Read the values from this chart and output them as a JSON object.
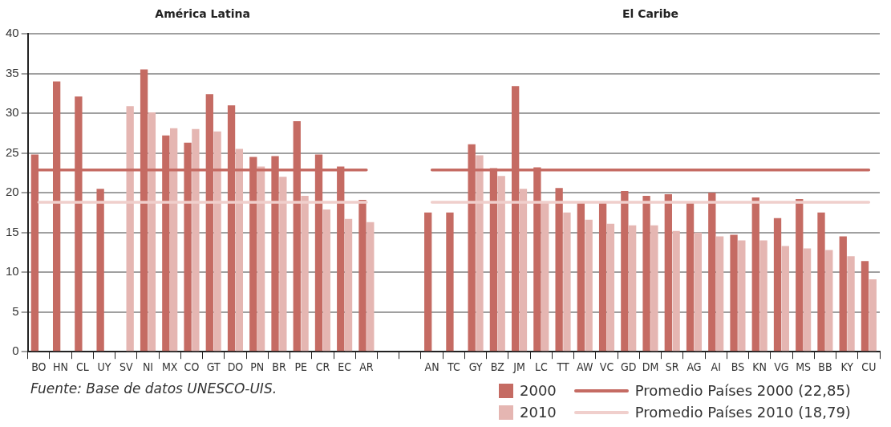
{
  "chart_data": {
    "type": "bar",
    "categories": [
      "BO",
      "HN",
      "CL",
      "UY",
      "SV",
      "NI",
      "MX",
      "CO",
      "GT",
      "DO",
      "PN",
      "BR",
      "PE",
      "CR",
      "EC",
      "AR",
      null,
      null,
      "AN",
      "TC",
      "GY",
      "BZ",
      "JM",
      "LC",
      "TT",
      "AW",
      "VC",
      "GD",
      "DM",
      "SR",
      "AG",
      "AI",
      "BS",
      "KN",
      "VG",
      "MS",
      "BB",
      "KY",
      "CU"
    ],
    "series": [
      {
        "name": "2000",
        "color": "#c56b63",
        "values": [
          24.8,
          34,
          32.1,
          20.5,
          null,
          35.5,
          27.2,
          26.3,
          32.4,
          31,
          24.5,
          24.6,
          29,
          24.8,
          23.3,
          19.1,
          null,
          null,
          17.5,
          17.5,
          26.1,
          23.1,
          33.4,
          23.2,
          20.6,
          18.7,
          18.8,
          20.2,
          19.6,
          19.8,
          18.7,
          20.0,
          14.7,
          19.4,
          16.8,
          19.2,
          17.5,
          14.5,
          11.4
        ]
      },
      {
        "name": "2010",
        "color": "#e5b6b2",
        "values": [
          null,
          null,
          null,
          null,
          30.9,
          30.1,
          28.1,
          28,
          27.7,
          25.5,
          23.3,
          22,
          19.6,
          17.9,
          16.7,
          16.3,
          null,
          null,
          null,
          null,
          24.7,
          22.1,
          20.5,
          18.9,
          17.5,
          16.6,
          16.1,
          15.9,
          15.9,
          15.2,
          15.0,
          14.5,
          14.0,
          14.0,
          13.3,
          13.0,
          12.8,
          12.0,
          9.1
        ]
      },
      {
        "name": "Promedio Países 2000 (22,85)",
        "type": "line",
        "color": "#c56b63",
        "values": [
          22.85,
          22.85,
          22.85,
          22.85,
          22.85,
          22.85,
          22.85,
          22.85,
          22.85,
          22.85,
          22.85,
          22.85,
          22.85,
          22.85,
          22.85,
          22.85,
          null,
          null,
          22.85,
          22.85,
          22.85,
          22.85,
          22.85,
          22.85,
          22.85,
          22.85,
          22.85,
          22.85,
          22.85,
          22.85,
          22.85,
          22.85,
          22.85,
          22.85,
          22.85,
          22.85,
          22.85,
          22.85,
          22.85
        ]
      },
      {
        "name": "Promedio Países 2010 (18,79)",
        "type": "line",
        "color": "#f0cfcc",
        "values": [
          18.79,
          18.79,
          18.79,
          18.79,
          18.79,
          18.79,
          18.79,
          18.79,
          18.79,
          18.79,
          18.79,
          18.79,
          18.79,
          18.79,
          18.79,
          18.79,
          null,
          null,
          18.79,
          18.79,
          18.79,
          18.79,
          18.79,
          18.79,
          18.79,
          18.79,
          18.79,
          18.79,
          18.79,
          18.79,
          18.79,
          18.79,
          18.79,
          18.79,
          18.79,
          18.79,
          18.79,
          18.79,
          18.79
        ]
      }
    ],
    "ylim": [
      0,
      40
    ],
    "yticks": [
      0,
      5,
      10,
      15,
      20,
      25,
      30,
      35,
      40
    ],
    "grid": "y",
    "legend": "bottom right",
    "marker": "none",
    "line_style": "solid",
    "annotations": [
      "América Latina",
      "El Caribe",
      "Fuente: Base de datos UNESCO-UIS."
    ]
  }
}
